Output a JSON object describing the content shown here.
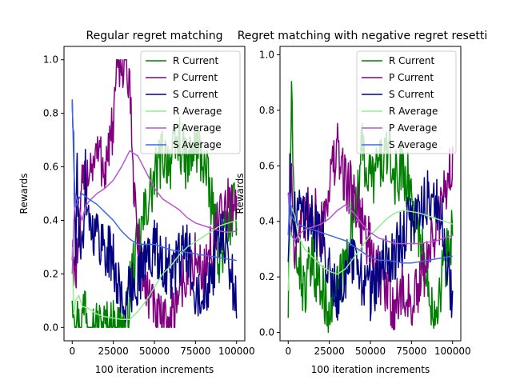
{
  "chart_data": [
    {
      "type": "line",
      "title": "Regular regret matching",
      "xlabel": "100 iteration increments",
      "ylabel": "Rewards",
      "xlim": [
        -5000,
        105000
      ],
      "ylim": [
        -0.05,
        1.05
      ],
      "xticks": [
        "0",
        "25000",
        "50000",
        "75000",
        "100000"
      ],
      "yticks": [
        "0.0",
        "0.2",
        "0.4",
        "0.6",
        "0.8",
        "1.0"
      ],
      "grid": false,
      "legend_position": "top-right",
      "series": [
        {
          "name": "R Current",
          "color": "#008000",
          "noisy": true,
          "x": [
            0,
            2000,
            4000,
            6000,
            8000,
            10000,
            15000,
            20000,
            25000,
            30000,
            32000,
            34000,
            36000,
            40000,
            45000,
            50000,
            55000,
            60000,
            65000,
            70000,
            75000,
            80000,
            85000,
            90000,
            95000,
            100000
          ],
          "y": [
            0.15,
            0.05,
            0.0,
            0.02,
            0.12,
            0.0,
            0.0,
            0.0,
            0.0,
            0.0,
            0.0,
            0.06,
            0.2,
            0.3,
            0.45,
            0.55,
            0.65,
            0.62,
            0.7,
            0.6,
            0.68,
            0.62,
            0.45,
            0.25,
            0.4,
            0.45
          ]
        },
        {
          "name": "P Current",
          "color": "#800080",
          "noisy": true,
          "x": [
            0,
            2000,
            4000,
            6000,
            8000,
            10000,
            15000,
            20000,
            25000,
            28000,
            30000,
            33000,
            35000,
            38000,
            40000,
            45000,
            50000,
            55000,
            60000,
            65000,
            70000,
            75000,
            80000,
            85000,
            90000,
            95000,
            100000
          ],
          "y": [
            0.3,
            0.2,
            0.3,
            0.5,
            0.55,
            0.6,
            0.65,
            0.6,
            0.75,
            1.0,
            1.0,
            1.0,
            0.85,
            0.5,
            0.3,
            0.15,
            0.05,
            0.0,
            0.02,
            0.15,
            0.2,
            0.25,
            0.2,
            0.3,
            0.4,
            0.45,
            0.48
          ]
        },
        {
          "name": "S Current",
          "color": "#000080",
          "noisy": true,
          "x": [
            0,
            1000,
            2000,
            3000,
            4000,
            6000,
            8000,
            10000,
            15000,
            20000,
            25000,
            30000,
            35000,
            40000,
            45000,
            50000,
            55000,
            60000,
            65000,
            70000,
            75000,
            80000,
            85000,
            90000,
            95000,
            100000
          ],
          "y": [
            0.9,
            0.6,
            0.3,
            0.55,
            0.4,
            0.25,
            0.6,
            0.4,
            0.35,
            0.3,
            0.25,
            0.1,
            0.12,
            0.2,
            0.25,
            0.3,
            0.25,
            0.2,
            0.25,
            0.3,
            0.15,
            0.15,
            0.2,
            0.35,
            0.25,
            0.1
          ]
        },
        {
          "name": "R Average",
          "color": "#90ee90",
          "noisy": false,
          "x": [
            0,
            1000,
            2000,
            4000,
            6000,
            10000,
            15000,
            20000,
            25000,
            30000,
            35000,
            40000,
            45000,
            50000,
            55000,
            60000,
            65000,
            70000,
            75000,
            80000,
            85000,
            90000,
            95000,
            100000
          ],
          "y": [
            0.3,
            0.05,
            0.1,
            0.12,
            0.08,
            0.07,
            0.05,
            0.04,
            0.035,
            0.03,
            0.03,
            0.06,
            0.1,
            0.15,
            0.2,
            0.23,
            0.27,
            0.3,
            0.32,
            0.34,
            0.36,
            0.38,
            0.39,
            0.4
          ]
        },
        {
          "name": "P Average",
          "color": "#ba55d3",
          "noisy": false,
          "x": [
            0,
            1000,
            2000,
            4000,
            6000,
            8000,
            10000,
            15000,
            20000,
            25000,
            30000,
            35000,
            40000,
            45000,
            50000,
            55000,
            60000,
            65000,
            70000,
            75000,
            80000,
            85000,
            90000,
            95000,
            100000
          ],
          "y": [
            0.2,
            0.4,
            0.5,
            0.45,
            0.4,
            0.45,
            0.47,
            0.5,
            0.52,
            0.55,
            0.6,
            0.66,
            0.64,
            0.58,
            0.52,
            0.48,
            0.46,
            0.44,
            0.41,
            0.39,
            0.38,
            0.37,
            0.36,
            0.355,
            0.36
          ]
        },
        {
          "name": "S Average",
          "color": "#4169e1",
          "noisy": false,
          "x": [
            0,
            1000,
            2000,
            4000,
            6000,
            8000,
            10000,
            15000,
            20000,
            25000,
            30000,
            35000,
            40000,
            45000,
            50000,
            55000,
            60000,
            65000,
            70000,
            75000,
            80000,
            85000,
            90000,
            95000,
            100000
          ],
          "y": [
            0.85,
            0.6,
            0.45,
            0.48,
            0.5,
            0.49,
            0.48,
            0.46,
            0.43,
            0.4,
            0.36,
            0.33,
            0.31,
            0.31,
            0.31,
            0.3,
            0.29,
            0.285,
            0.28,
            0.275,
            0.27,
            0.265,
            0.26,
            0.255,
            0.25
          ]
        }
      ]
    },
    {
      "type": "line",
      "title": "Regret matching with negative regret resetti",
      "xlabel": "100 iteration increments",
      "ylabel": "Rewards",
      "xlim": [
        -5000,
        105000
      ],
      "ylim": [
        -0.03,
        1.03
      ],
      "xticks": [
        "0",
        "25000",
        "50000",
        "75000",
        "100000"
      ],
      "yticks": [
        "0.0",
        "0.2",
        "0.4",
        "0.6",
        "0.8",
        "1.0"
      ],
      "grid": false,
      "legend_position": "top-right",
      "series": [
        {
          "name": "R Current",
          "color": "#008000",
          "noisy": true,
          "x": [
            0,
            1000,
            2000,
            3000,
            5000,
            8000,
            10000,
            15000,
            20000,
            25000,
            30000,
            35000,
            40000,
            45000,
            50000,
            55000,
            60000,
            65000,
            70000,
            75000,
            80000,
            85000,
            90000,
            95000,
            100000
          ],
          "y": [
            0.1,
            0.35,
            0.9,
            0.5,
            0.3,
            0.2,
            0.15,
            0.25,
            0.15,
            0.1,
            0.15,
            0.25,
            0.45,
            0.65,
            0.55,
            0.6,
            0.65,
            0.55,
            0.6,
            0.5,
            0.35,
            0.15,
            0.1,
            0.25,
            0.35
          ]
        },
        {
          "name": "P Current",
          "color": "#800080",
          "noisy": true,
          "x": [
            0,
            1000,
            2000,
            4000,
            6000,
            10000,
            15000,
            20000,
            25000,
            30000,
            35000,
            40000,
            45000,
            50000,
            55000,
            60000,
            65000,
            70000,
            75000,
            80000,
            85000,
            90000,
            95000,
            100000
          ],
          "y": [
            0.55,
            0.4,
            0.6,
            0.3,
            0.35,
            0.4,
            0.45,
            0.35,
            0.55,
            0.65,
            0.55,
            0.5,
            0.4,
            0.3,
            0.2,
            0.15,
            0.1,
            0.15,
            0.1,
            0.15,
            0.3,
            0.35,
            0.5,
            0.62
          ]
        },
        {
          "name": "S Current",
          "color": "#000080",
          "noisy": true,
          "x": [
            0,
            1000,
            2000,
            4000,
            6000,
            10000,
            15000,
            20000,
            25000,
            30000,
            35000,
            40000,
            45000,
            50000,
            55000,
            60000,
            65000,
            70000,
            75000,
            80000,
            85000,
            90000,
            95000,
            100000
          ],
          "y": [
            0.3,
            0.55,
            0.35,
            0.4,
            0.45,
            0.45,
            0.4,
            0.35,
            0.25,
            0.15,
            0.2,
            0.25,
            0.2,
            0.15,
            0.2,
            0.25,
            0.3,
            0.35,
            0.4,
            0.45,
            0.5,
            0.45,
            0.35,
            0.1
          ]
        },
        {
          "name": "R Average",
          "color": "#90ee90",
          "noisy": false,
          "x": [
            0,
            1000,
            2000,
            4000,
            6000,
            10000,
            15000,
            20000,
            25000,
            30000,
            35000,
            40000,
            45000,
            50000,
            55000,
            60000,
            65000,
            70000,
            75000,
            80000,
            85000,
            90000,
            95000,
            100000
          ],
          "y": [
            0.15,
            0.3,
            0.45,
            0.42,
            0.35,
            0.3,
            0.27,
            0.24,
            0.22,
            0.21,
            0.23,
            0.27,
            0.31,
            0.35,
            0.38,
            0.41,
            0.43,
            0.44,
            0.435,
            0.43,
            0.42,
            0.41,
            0.4,
            0.39
          ]
        },
        {
          "name": "P Average",
          "color": "#ba55d3",
          "noisy": false,
          "x": [
            0,
            1000,
            2000,
            4000,
            6000,
            10000,
            15000,
            20000,
            25000,
            30000,
            35000,
            40000,
            45000,
            50000,
            55000,
            60000,
            65000,
            70000,
            75000,
            80000,
            85000,
            90000,
            95000,
            100000
          ],
          "y": [
            0.5,
            0.4,
            0.35,
            0.33,
            0.35,
            0.37,
            0.38,
            0.39,
            0.41,
            0.44,
            0.46,
            0.43,
            0.39,
            0.36,
            0.34,
            0.33,
            0.32,
            0.32,
            0.32,
            0.32,
            0.325,
            0.33,
            0.34,
            0.35
          ]
        },
        {
          "name": "S Average",
          "color": "#4169e1",
          "noisy": false,
          "x": [
            0,
            1000,
            2000,
            4000,
            6000,
            10000,
            15000,
            20000,
            25000,
            30000,
            35000,
            40000,
            45000,
            50000,
            55000,
            60000,
            65000,
            70000,
            75000,
            80000,
            85000,
            90000,
            95000,
            100000
          ],
          "y": [
            0.35,
            0.5,
            0.42,
            0.4,
            0.39,
            0.38,
            0.37,
            0.36,
            0.35,
            0.34,
            0.33,
            0.31,
            0.29,
            0.27,
            0.26,
            0.26,
            0.255,
            0.25,
            0.25,
            0.255,
            0.26,
            0.265,
            0.27,
            0.275
          ]
        }
      ]
    }
  ]
}
